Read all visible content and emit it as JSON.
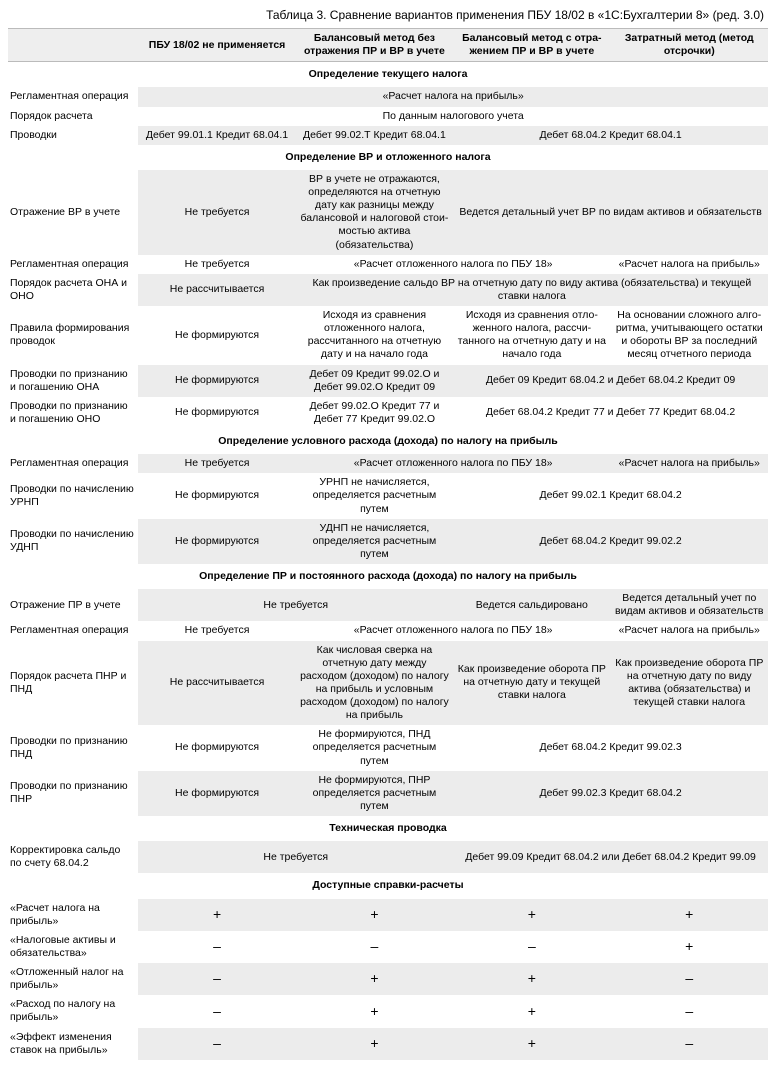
{
  "title": "Таблица 3. Сравнение вариантов применения ПБУ 18/02 в «1С:Бухгалтерии 8» (ред. 3.0)",
  "headers": {
    "h0": "",
    "h1": "ПБУ 18/02 не применяется",
    "h2": "Балансовый метод без отражения ПР и ВР в учете",
    "h3": "Балансовый метод с отра­жением ПР и ВР в учете",
    "h4": "Затратный метод (метод отсрочки)"
  },
  "sections": {
    "s1": "Определение текущего налога",
    "s2": "Определение ВР и отложенного налога",
    "s3": "Определение условного расхода (дохода) по налогу на прибыль",
    "s4": "Определение ПР и постоянного расхода (дохода) по налогу на прибыль",
    "s5": "Техническая проводка",
    "s6": "Доступные справки-расчеты"
  },
  "r": {
    "a1": {
      "l": "Регламентная операция",
      "v": "«Расчет налога на прибыль»"
    },
    "a2": {
      "l": "Порядок расчета",
      "v": "По данным налогового учета"
    },
    "a3": {
      "l": "Проводки",
      "c1": "Дебет 99.01.1 Кредит 68.04.1",
      "c2": "Дебет 99.02.Т Кредит 68.04.1",
      "c34": "Дебет 68.04.2 Кредит 68.04.1"
    },
    "b1": {
      "l": "Отражение ВР в учете",
      "c1": "Не требуется",
      "c2": "ВР в учете не отражаются, определя­ются на отчетную дату как разницы между балансовой и налоговой стои­мостью актива (обязательства)",
      "c34": "Ведется детальный учет ВР по видам активов и обязательств"
    },
    "b2": {
      "l": "Регламентная операция",
      "c1": "Не требуется",
      "c23": "«Расчет отложенного налога по ПБУ 18»",
      "c4": "«Расчет налога на прибыль»"
    },
    "b3": {
      "l": "Порядок расчета ОНА и ОНО",
      "c1": "Не рассчитывается",
      "c234": "Как произведение сальдо ВР на отчетную дату по виду актива (обязательства) и текущей ставки налога"
    },
    "b4": {
      "l": "Правила формирования проводок",
      "c1": "Не формируются",
      "c2": "Исходя из сравнения отложенного налога, рассчитанного на отчетную дату и на начало года",
      "c3": "Исходя из сравнения отло­женного налога, рассчи­танного на отчетную дату и на начало года",
      "c4": "На основании сложного алго­ритма, учитывающего остатки и обороты ВР за последний месяц отчетного периода"
    },
    "b5": {
      "l": "Проводки по признанию и погашению ОНА",
      "c1": "Не формируются",
      "c2": "Дебет 09 Кредит 99.02.О и Дебет 99.02.О Кредит 09",
      "c34": "Дебет 09 Кредит 68.04.2 и Дебет 68.04.2 Кредит 09"
    },
    "b6": {
      "l": "Проводки по признанию и погашению ОНО",
      "c1": "Не формируются",
      "c2": "Дебет 99.02.О Кредит 77 и Дебет 77 Кредит 99.02.О",
      "c34": "Дебет 68.04.2 Кредит 77 и Дебет 77 Кредит 68.04.2"
    },
    "c1": {
      "l": "Регламентная операция",
      "c1": "Не требуется",
      "c23": "«Расчет отложенного налога по ПБУ 18»",
      "c4": "«Расчет налога на прибыль»"
    },
    "c2": {
      "l": "Проводки по начислению УРНП",
      "c1": "Не формируются",
      "c2": "УРНП не начисляется, определяется расчетным путем",
      "c34": "Дебет 99.02.1 Кредит 68.04.2"
    },
    "c3": {
      "l": "Проводки по начислению УДНП",
      "c1": "Не формируются",
      "c2": "УДНП не начисляется, определяется расчетным путем",
      "c34": "Дебет 68.04.2 Кредит 99.02.2"
    },
    "d1": {
      "l": "Отражение ПР в  учете",
      "c12": "Не требуется",
      "c3": "Ведется сальдировано",
      "c4": "Ведется детальный учет по видам активов и обязательств"
    },
    "d2": {
      "l": "Регламентная операция",
      "c1": "Не требуется",
      "c23": "«Расчет отложенного налога по ПБУ 18»",
      "c4": "«Расчет налога на прибыль»"
    },
    "d3": {
      "l": "Порядок расчета ПНР и ПНД",
      "c1": "Не рассчитывается",
      "c2": "Как числовая сверка на отчетную дату между расходом (доходом) по налогу на прибыль и условным расхо­дом (доходом) по налогу на прибыль",
      "c3": "Как произведение обо­рота ПР на отчетную дату и текущей ставки налога",
      "c4": "Как произведение оборота ПР на отчетную дату по виду актива (обязательства) и текущей ставки налога"
    },
    "d4": {
      "l": "Проводки по признанию ПНД",
      "c1": "Не формируются",
      "c2": "Не формируются, ПНД определяется расчетным путем",
      "c34": "Дебет 68.04.2 Кредит 99.02.3"
    },
    "d5": {
      "l": "Проводки по признанию ПНР",
      "c1": "Не формируются",
      "c2": "Не формируются, ПНР определяется расчетным путем",
      "c34": "Дебет 99.02.3 Кредит 68.04.2"
    },
    "e1": {
      "l": "Корректировка сальдо по счету 68.04.2",
      "c12": "Не требуется",
      "c34": "Дебет 99.09 Кредит 68.04.2 или Дебет 68.04.2 Кредит 99.09"
    },
    "f1": {
      "l": "«Расчет налога на прибыль»",
      "c1": "+",
      "c2": "+",
      "c3": "+",
      "c4": "+"
    },
    "f2": {
      "l": "«Налоговые активы и обязательства»",
      "c1": "–",
      "c2": "–",
      "c3": "–",
      "c4": "+"
    },
    "f3": {
      "l": "«Отложенный налог на прибыль»",
      "c1": "–",
      "c2": "+",
      "c3": "+",
      "c4": "–"
    },
    "f4": {
      "l": "«Расход по налогу на прибыль»",
      "c1": "–",
      "c2": "+",
      "c3": "+",
      "c4": "–"
    },
    "f5": {
      "l": "«Эффект изменения ставок на прибыль»",
      "c1": "–",
      "c2": "+",
      "c3": "+",
      "c4": "–"
    }
  }
}
